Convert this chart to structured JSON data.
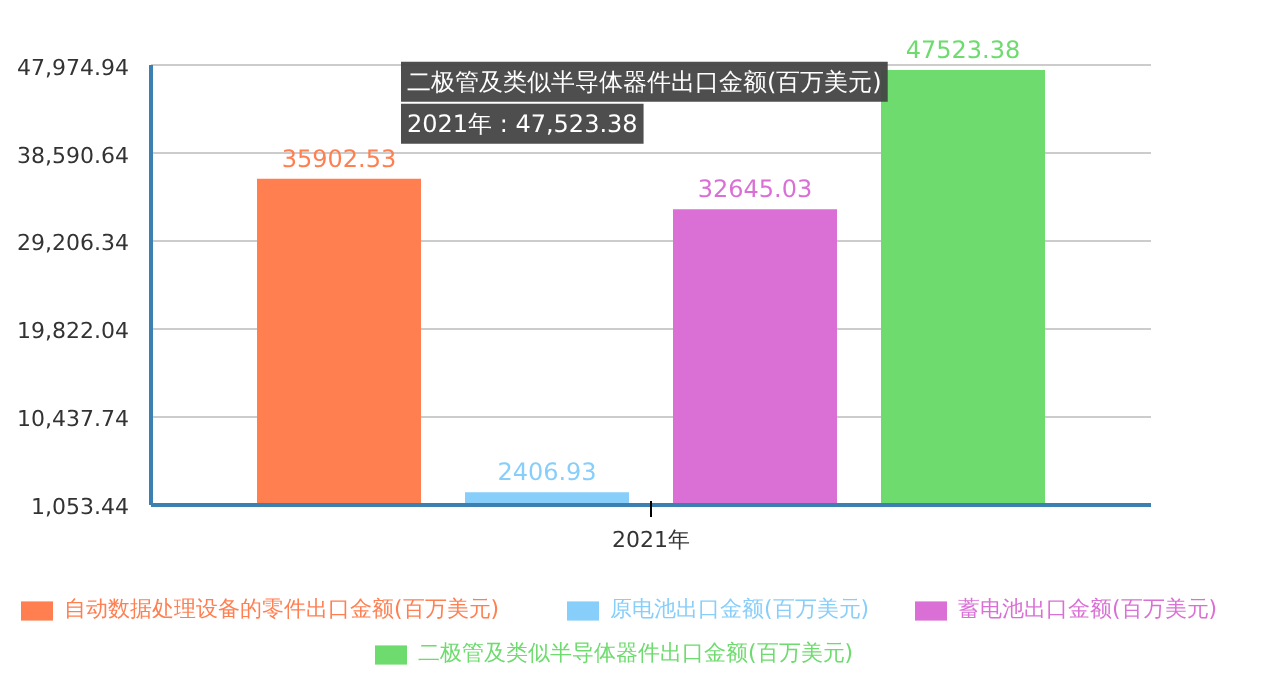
{
  "chart_data": {
    "type": "bar",
    "categories": [
      "2021年"
    ],
    "series": [
      {
        "name": "自动数据处理设备的零件出口金额(百万美元)",
        "color": "#ff7f50",
        "values": [
          35902.53
        ]
      },
      {
        "name": "原电池出口金额(百万美元)",
        "color": "#87cefa",
        "values": [
          2406.93
        ]
      },
      {
        "name": "蓄电池出口金额(百万美元)",
        "color": "#da70d6",
        "values": [
          32645.03
        ]
      },
      {
        "name": "二极管及类似半导体器件出口金额(百万美元)",
        "color": "#6ddb6d",
        "values": [
          47523.38
        ]
      }
    ],
    "ylim": [
      1053.44,
      47974.94
    ],
    "yticks": [
      {
        "value": 1053.44,
        "label": "1,053.44"
      },
      {
        "value": 10437.74,
        "label": "10,437.74"
      },
      {
        "value": 19822.04,
        "label": "19,822.04"
      },
      {
        "value": 29206.34,
        "label": "29,206.34"
      },
      {
        "value": 38590.64,
        "label": "38,590.64"
      },
      {
        "value": 47974.94,
        "label": "47,974.94"
      }
    ],
    "grid": "y",
    "legend": "bottom",
    "data_labels": true,
    "annotations": [
      "二极管及类似半导体器件出口金额(百万美元)",
      "2021年 : 47,523.38"
    ]
  }
}
